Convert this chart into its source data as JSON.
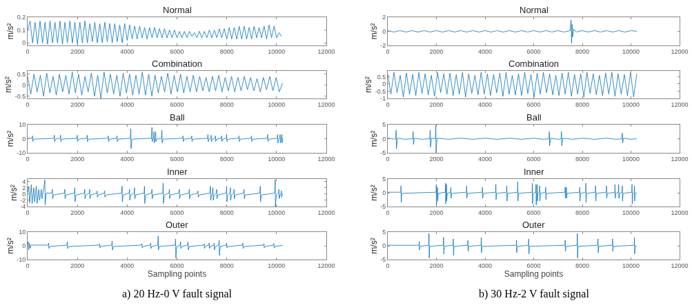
{
  "chart_data": [
    {
      "type": "line",
      "title": "Normal",
      "ylabel": "m/s²",
      "color": "#0072bd",
      "xlim": [
        0,
        12000
      ],
      "xticks": [
        0,
        2000,
        4000,
        6000,
        8000,
        10000,
        12000
      ],
      "ylim": [
        -0.02,
        0.2
      ],
      "yticks": [
        0,
        0.1,
        0.2
      ],
      "x": [
        0,
        100,
        200,
        300,
        400,
        500,
        600,
        700,
        800,
        900,
        1000,
        1100,
        1200,
        1300,
        1400,
        1500,
        1600,
        1700,
        1800,
        1900,
        2000,
        2100,
        2200,
        2300,
        2400,
        2500,
        2600,
        2700,
        2800,
        2900,
        3000,
        3100,
        3200,
        3300,
        3400,
        3500,
        3600,
        3700,
        3800,
        3900,
        4000,
        4100,
        4200,
        4300,
        4400,
        4500,
        4600,
        4700,
        4800,
        4900,
        5000,
        5100,
        5200,
        5300,
        5400,
        5500,
        5600,
        5700,
        5800,
        5900,
        6000,
        6100,
        6200,
        6300,
        6400,
        6500,
        6600,
        6700,
        6800,
        6900,
        7000,
        7100,
        7200,
        7300,
        7400,
        7500,
        7600,
        7700,
        7800,
        7900,
        8000,
        8100,
        8200,
        8300,
        8400,
        8500,
        8600,
        8700,
        8800,
        8900,
        9000,
        9100,
        9200,
        9300,
        9400,
        9500,
        9600,
        9700,
        9800,
        9900,
        10000,
        10100,
        10200
      ],
      "values": [
        0.1,
        0.17,
        0.0,
        0.16,
        -0.01,
        0.17,
        0.0,
        0.16,
        -0.01,
        0.17,
        0.0,
        0.16,
        0.0,
        0.17,
        -0.01,
        0.16,
        0.0,
        0.17,
        0.0,
        0.16,
        -0.01,
        0.16,
        0.0,
        0.17,
        0.0,
        0.15,
        0.01,
        0.16,
        0.0,
        0.15,
        0.0,
        0.16,
        0.01,
        0.15,
        0.0,
        0.15,
        0.01,
        0.14,
        0.0,
        0.15,
        0.02,
        0.14,
        0.03,
        0.13,
        0.03,
        0.13,
        0.04,
        0.12,
        0.03,
        0.12,
        0.04,
        0.12,
        0.04,
        0.11,
        0.04,
        0.11,
        0.04,
        0.1,
        0.04,
        0.1,
        0.04,
        0.09,
        0.04,
        0.09,
        0.04,
        0.09,
        0.05,
        0.08,
        0.04,
        0.09,
        0.04,
        0.09,
        0.04,
        0.1,
        0.04,
        0.1,
        0.04,
        0.11,
        0.04,
        0.11,
        0.03,
        0.12,
        0.03,
        0.12,
        0.03,
        0.13,
        0.03,
        0.13,
        0.03,
        0.12,
        0.03,
        0.13,
        0.04,
        0.12,
        0.04,
        0.13,
        0.03,
        0.14,
        0.04,
        0.13,
        0.04,
        0.08,
        0.05
      ]
    },
    {
      "type": "line",
      "title": "Combination",
      "ylabel": "m/s²",
      "color": "#0072bd",
      "xlim": [
        0,
        12000
      ],
      "xticks": [
        0,
        2000,
        4000,
        6000,
        8000,
        10000,
        12000
      ],
      "ylim": [
        -0.6,
        0.65
      ],
      "yticks": [
        -0.5,
        0,
        0.5
      ],
      "x": [
        0,
        128,
        256,
        384,
        512,
        640,
        768,
        896,
        1024,
        1152,
        1280,
        1408,
        1536,
        1664,
        1792,
        1920,
        2048,
        2176,
        2304,
        2432,
        2560,
        2688,
        2816,
        2944,
        3072,
        3200,
        3328,
        3456,
        3584,
        3712,
        3840,
        3968,
        4096,
        4224,
        4352,
        4480,
        4608,
        4736,
        4864,
        4992,
        5120,
        5248,
        5376,
        5504,
        5632,
        5760,
        5888,
        6016,
        6144,
        6272,
        6400,
        6528,
        6656,
        6784,
        6912,
        7040,
        7168,
        7296,
        7424,
        7552,
        7680,
        7808,
        7936,
        8064,
        8192,
        8320,
        8448,
        8576,
        8704,
        8832,
        8960,
        9088,
        9216,
        9344,
        9472,
        9600,
        9728,
        9856,
        9984,
        10112,
        10240
      ],
      "values": [
        0.4,
        -0.4,
        0.5,
        -0.3,
        0.45,
        -0.5,
        0.55,
        -0.35,
        0.4,
        -0.45,
        0.5,
        -0.3,
        0.45,
        -0.4,
        0.6,
        -0.35,
        0.5,
        -0.45,
        0.4,
        -0.3,
        0.55,
        -0.5,
        0.45,
        -0.6,
        0.6,
        -0.35,
        0.5,
        -0.4,
        0.45,
        -0.5,
        0.55,
        -0.35,
        0.5,
        -0.45,
        0.45,
        -0.4,
        0.6,
        -0.45,
        0.5,
        -0.5,
        0.45,
        -0.35,
        0.4,
        -0.3,
        0.55,
        -0.4,
        0.45,
        -0.3,
        0.5,
        -0.35,
        0.4,
        -0.3,
        0.45,
        -0.3,
        0.4,
        -0.25,
        0.35,
        -0.3,
        0.4,
        -0.25,
        0.45,
        -0.3,
        0.35,
        -0.25,
        0.4,
        -0.3,
        0.35,
        -0.25,
        0.4,
        -0.2,
        0.35,
        -0.25,
        0.3,
        -0.3,
        0.35,
        -0.2,
        0.4,
        -0.25,
        0.35,
        -0.3,
        0.1
      ]
    },
    {
      "type": "line",
      "title": "Ball",
      "ylabel": "m/s²",
      "color": "#0072bd",
      "xlim": [
        0,
        12000
      ],
      "xticks": [
        0,
        2000,
        4000,
        6000,
        8000,
        10000,
        12000
      ],
      "ylim": [
        -10,
        10
      ],
      "yticks": [
        -10,
        0,
        10
      ],
      "x": [
        0,
        180,
        195,
        205,
        240,
        1060,
        1075,
        1085,
        1120,
        1310,
        1325,
        1335,
        1370,
        1980,
        1995,
        2005,
        2040,
        2380,
        2395,
        2405,
        2440,
        3230,
        3245,
        3255,
        3290,
        3580,
        3595,
        3605,
        3640,
        4130,
        4145,
        4155,
        4190,
        4980,
        4995,
        5005,
        5040,
        5060,
        5075,
        5085,
        5120,
        5130,
        5145,
        5155,
        5190,
        5380,
        5395,
        5405,
        5440,
        6230,
        6245,
        6255,
        6290,
        6580,
        6595,
        6605,
        6640,
        7230,
        7245,
        7255,
        7290,
        7360,
        7375,
        7385,
        7420,
        7530,
        7545,
        7555,
        7590,
        7780,
        7795,
        7805,
        7840,
        7980,
        7995,
        8005,
        8040,
        8480,
        8495,
        8505,
        8540,
        8980,
        8995,
        9005,
        9040,
        9630,
        9645,
        9655,
        9690,
        10030,
        10045,
        10055,
        10090,
        10130,
        10145,
        10155,
        10190,
        10200,
        10215,
        10225,
        10240
      ],
      "values": [
        0.3,
        0.3,
        2,
        -2,
        -0.3,
        0.3,
        2.5,
        -2,
        -0.3,
        0.3,
        2.5,
        -2,
        -0.3,
        0.3,
        2.5,
        -2,
        -0.3,
        0.3,
        2.5,
        -2,
        -0.3,
        0.3,
        2,
        -2,
        -0.3,
        0.3,
        2,
        -2,
        -0.3,
        0.3,
        7,
        -7,
        -0.3,
        0.3,
        8,
        -2,
        -0.3,
        0.3,
        5,
        -3,
        -0.3,
        0.3,
        5,
        -2,
        -0.3,
        0.3,
        6,
        -3,
        -0.3,
        0.3,
        2,
        -2,
        -0.3,
        0.3,
        2,
        -2,
        -0.3,
        0.3,
        3,
        -2,
        -0.3,
        0.3,
        2.5,
        -2,
        -0.3,
        0.3,
        2,
        -2,
        -0.3,
        0.3,
        2,
        -2,
        -0.3,
        0.3,
        3,
        -2,
        -0.3,
        0.3,
        2,
        -2,
        -0.3,
        0.3,
        2,
        -2,
        -0.3,
        0.3,
        3,
        -2,
        -0.3,
        0.3,
        3,
        -3,
        -0.3,
        0.3,
        3,
        -3,
        -0.3,
        0.3,
        3,
        -3,
        0.2
      ]
    },
    {
      "type": "line",
      "title": "Inner",
      "ylabel": "m/s²",
      "color": "#0072bd",
      "xlim": [
        0,
        12000
      ],
      "xticks": [
        0,
        2000,
        4000,
        6000,
        8000,
        10000,
        12000
      ],
      "ylim": [
        -4,
        4.8
      ],
      "yticks": [
        -4,
        -2,
        0,
        2,
        4
      ],
      "x": [
        0,
        50,
        80,
        150,
        180,
        250,
        280,
        350,
        380,
        450,
        480,
        550,
        580,
        695,
        705,
        750,
        980,
        995,
        1005,
        1040,
        1480,
        1495,
        1505,
        1540,
        1880,
        1895,
        1905,
        1940,
        2280,
        2295,
        2305,
        2340,
        2480,
        2495,
        2505,
        2540,
        2780,
        2795,
        2805,
        2840,
        3080,
        3095,
        3105,
        3140,
        3780,
        3795,
        3805,
        3840,
        4080,
        4095,
        4105,
        4140,
        4280,
        4295,
        4305,
        4340,
        4680,
        4695,
        4705,
        4740,
        4980,
        4995,
        5005,
        5040,
        5430,
        5445,
        5455,
        5490,
        5680,
        5695,
        5705,
        5740,
        6080,
        6095,
        6105,
        6140,
        6480,
        6495,
        6505,
        6540,
        6830,
        6845,
        6855,
        6890,
        7330,
        7345,
        7355,
        7390,
        7430,
        7445,
        7455,
        7490,
        7580,
        7595,
        7605,
        7640,
        7980,
        7995,
        8005,
        8040,
        8130,
        8145,
        8155,
        8190,
        8280,
        8295,
        8305,
        8340,
        8680,
        8695,
        8705,
        8740,
        9330,
        9345,
        9355,
        9390,
        9930,
        9945,
        9955,
        9990,
        10080,
        10095,
        10105,
        10140,
        10180,
        10195,
        10205,
        10240
      ],
      "values": [
        0.5,
        2.5,
        -2.8,
        3,
        -3,
        2,
        -2.5,
        2.5,
        -3,
        1.5,
        -2,
        1.5,
        -1.5,
        4.5,
        -3.5,
        0.3,
        0.3,
        1.5,
        -1.5,
        -0.3,
        0.3,
        1.5,
        -1.5,
        -0.3,
        0.3,
        2,
        -2.5,
        -0.3,
        0.3,
        1.5,
        -1.5,
        -0.3,
        0.3,
        1.5,
        -1.5,
        -0.3,
        0.3,
        1,
        -1,
        -0.3,
        0.3,
        1,
        -1,
        -0.3,
        0.3,
        2.5,
        -2.5,
        -0.3,
        0.3,
        1.5,
        -2,
        -0.3,
        0.3,
        2,
        -1.5,
        -0.3,
        0.3,
        2.5,
        -3,
        -0.3,
        0.3,
        1.5,
        -1.5,
        -0.3,
        0.3,
        3.5,
        -3,
        -0.3,
        0.3,
        1.5,
        -1.5,
        -0.3,
        0.3,
        1.5,
        -1.5,
        -0.3,
        0.3,
        1.5,
        -1.5,
        -0.3,
        0.3,
        1,
        -1,
        -0.3,
        0.3,
        2.5,
        -2,
        -0.3,
        0.3,
        2,
        -2,
        -0.3,
        0.3,
        1.5,
        -1.5,
        -0.3,
        0.3,
        2.5,
        -2.5,
        -0.3,
        0.3,
        2,
        -2,
        -0.3,
        0.3,
        1.5,
        -1.5,
        -0.3,
        0.3,
        1.5,
        -1.5,
        -0.3,
        0.3,
        2.5,
        -2.5,
        -0.3,
        0.3,
        4.5,
        -4,
        -0.3,
        0.3,
        1.5,
        -1.5,
        -0.3,
        0.3,
        1,
        -1,
        0.1
      ]
    },
    {
      "type": "line",
      "title": "Outer",
      "ylabel": "m/s²",
      "xlabel": "Sampling points",
      "annotations": [
        "a) 20 Hz-0 V fault signal"
      ],
      "color": "#0072bd",
      "xlim": [
        0,
        12000
      ],
      "xticks": [
        0,
        2000,
        4000,
        6000,
        8000,
        10000,
        12000
      ],
      "ylim": [
        -10,
        10
      ],
      "yticks": [
        -10,
        0,
        10
      ],
      "x": [
        0,
        20,
        40,
        70,
        100,
        130,
        830,
        845,
        855,
        890,
        1580,
        1595,
        1605,
        1640,
        2880,
        2895,
        2905,
        2940,
        3380,
        3395,
        3405,
        3440,
        4580,
        4595,
        4605,
        4640,
        4930,
        4945,
        4955,
        4990,
        5230,
        5245,
        5255,
        5290,
        5930,
        5945,
        5955,
        5990,
        6130,
        6145,
        6155,
        6190,
        6430,
        6445,
        6455,
        6490,
        7080,
        7095,
        7105,
        7140,
        7280,
        7295,
        7305,
        7340,
        7480,
        7495,
        7505,
        7540,
        7680,
        7695,
        7705,
        7740,
        7980,
        7995,
        8005,
        8040,
        8630,
        8645,
        8655,
        8690,
        9480,
        9495,
        9505,
        9540,
        9880,
        9895,
        9905,
        9940,
        10240
      ],
      "values": [
        1,
        3,
        -3,
        2,
        -2,
        0.5,
        0.5,
        2,
        -2,
        -0.5,
        0.5,
        3,
        -2,
        -0.5,
        0.5,
        1.5,
        -1.5,
        -0.5,
        0.5,
        3.5,
        -3,
        -0.5,
        0.5,
        1.5,
        -1.5,
        -0.5,
        0.5,
        2,
        -2,
        -0.5,
        0.5,
        7,
        -3,
        -0.5,
        0.5,
        5,
        -9,
        -0.5,
        0.5,
        3,
        -2,
        -0.5,
        0.5,
        3,
        -3,
        -0.5,
        0.5,
        1.5,
        -2,
        -0.5,
        0.5,
        2,
        -2,
        -0.5,
        0.5,
        2,
        -3,
        -0.5,
        0.5,
        4,
        -7,
        -0.5,
        0.5,
        2,
        -1.5,
        -0.5,
        0.5,
        2,
        -2,
        -0.5,
        0.5,
        1.5,
        -1.5,
        -0.5,
        0.5,
        1.5,
        -1.5,
        -0.5,
        0.3
      ]
    },
    {
      "type": "line",
      "title": "Normal",
      "ylabel": "m/s²",
      "color": "#0072bd",
      "xlim": [
        0,
        12000
      ],
      "xticks": [
        0,
        2000,
        4000,
        6000,
        8000,
        10000,
        12000
      ],
      "ylim": [
        -2,
        2
      ],
      "yticks": [
        -2,
        0,
        2
      ],
      "x": [
        0,
        250,
        500,
        750,
        1000,
        1250,
        1500,
        1750,
        2000,
        2250,
        2500,
        2750,
        3000,
        3250,
        3500,
        3750,
        4000,
        4250,
        4500,
        4750,
        5000,
        5250,
        5500,
        5750,
        6000,
        6250,
        6500,
        6750,
        7000,
        7250,
        7500,
        7540,
        7560,
        7580,
        7600,
        7650,
        7750,
        8000,
        8250,
        8500,
        8750,
        9000,
        9250,
        9500,
        9750,
        10000,
        10240
      ],
      "values": [
        0.1,
        -0.1,
        0.1,
        -0.1,
        0.1,
        -0.1,
        0.1,
        -0.1,
        0.1,
        -0.1,
        0.1,
        -0.1,
        0.1,
        -0.1,
        0.1,
        -0.1,
        0.1,
        -0.1,
        0.1,
        -0.1,
        0.1,
        -0.1,
        0.1,
        -0.1,
        0.1,
        -0.1,
        0.1,
        -0.1,
        0.1,
        -0.1,
        0.1,
        1.6,
        -1.7,
        1.0,
        -0.8,
        0.3,
        -0.1,
        0.1,
        -0.1,
        0.1,
        -0.1,
        0.1,
        -0.1,
        0.1,
        -0.1,
        0.1,
        0.0
      ]
    },
    {
      "type": "line",
      "title": "Combination",
      "ylabel": "m/s²",
      "color": "#0072bd",
      "xlim": [
        0,
        12000
      ],
      "xticks": [
        0,
        2000,
        4000,
        6000,
        8000,
        10000,
        12000
      ],
      "ylim": [
        -1,
        0.9
      ],
      "yticks": [
        -1,
        -0.5,
        0,
        0.5
      ],
      "x": [
        0,
        128,
        256,
        384,
        512,
        640,
        768,
        896,
        1024,
        1152,
        1280,
        1408,
        1536,
        1664,
        1792,
        1920,
        2048,
        2176,
        2304,
        2432,
        2560,
        2688,
        2816,
        2944,
        3072,
        3200,
        3328,
        3456,
        3584,
        3712,
        3840,
        3968,
        4096,
        4224,
        4352,
        4480,
        4608,
        4736,
        4864,
        4992,
        5120,
        5248,
        5376,
        5504,
        5632,
        5760,
        5888,
        6016,
        6144,
        6272,
        6400,
        6528,
        6656,
        6784,
        6912,
        7040,
        7168,
        7296,
        7424,
        7552,
        7680,
        7808,
        7936,
        8064,
        8192,
        8320,
        8448,
        8576,
        8704,
        8832,
        8960,
        9088,
        9216,
        9344,
        9472,
        9600,
        9728,
        9856,
        9984,
        10112,
        10240
      ],
      "values": [
        0.7,
        -0.7,
        0.8,
        -0.6,
        0.6,
        -0.9,
        0.75,
        -0.7,
        0.65,
        -0.8,
        0.8,
        -0.65,
        0.7,
        -0.75,
        0.6,
        -0.85,
        0.8,
        -0.6,
        0.7,
        -0.7,
        0.75,
        -0.8,
        0.65,
        -0.7,
        0.8,
        -0.9,
        0.7,
        -0.65,
        0.6,
        -0.75,
        0.8,
        -0.7,
        0.7,
        -0.8,
        0.65,
        -0.6,
        0.75,
        -0.85,
        0.8,
        -0.7,
        0.6,
        -0.75,
        0.7,
        -0.8,
        0.8,
        -0.65,
        0.65,
        -0.9,
        0.75,
        -0.7,
        0.8,
        -0.6,
        0.7,
        -0.75,
        0.6,
        -0.8,
        0.75,
        -0.7,
        0.8,
        -0.85,
        0.65,
        -0.7,
        0.7,
        -0.9,
        0.8,
        -0.65,
        0.7,
        -0.75,
        0.6,
        -0.8,
        0.75,
        -0.7,
        0.8,
        -0.85,
        0.7,
        -0.7,
        0.65,
        -0.8,
        0.8,
        -0.9,
        0.7
      ]
    },
    {
      "type": "line",
      "title": "Ball",
      "ylabel": "m/s²",
      "color": "#0072bd",
      "xlim": [
        0,
        12000
      ],
      "xticks": [
        0,
        2000,
        4000,
        6000,
        8000,
        10000,
        12000
      ],
      "ylim": [
        -5,
        5
      ],
      "yticks": [
        -5,
        0,
        5
      ],
      "x": [
        0,
        300,
        330,
        345,
        355,
        400,
        700,
        1030,
        1045,
        1055,
        1100,
        1400,
        1730,
        1745,
        1755,
        1800,
        1960,
        1975,
        1985,
        2030,
        2500,
        3000,
        3500,
        4000,
        4500,
        5000,
        5500,
        6000,
        6400,
        6630,
        6645,
        6655,
        6700,
        7000,
        7130,
        7145,
        7155,
        7200,
        7600,
        8000,
        8500,
        9000,
        9400,
        9630,
        9645,
        9655,
        9700,
        10000,
        10240
      ],
      "values": [
        0.2,
        -0.2,
        0,
        3,
        -3.5,
        0.2,
        -0.2,
        0,
        2.5,
        -2,
        0.2,
        -0.2,
        0,
        3,
        -3,
        0.2,
        0,
        4.7,
        -4.9,
        0.2,
        -0.2,
        0.2,
        -0.2,
        0.2,
        -0.2,
        0.2,
        -0.2,
        0.2,
        -0.2,
        0,
        2.5,
        -2.5,
        0.2,
        -0.2,
        0,
        2.5,
        -2.5,
        0.2,
        -0.2,
        0.2,
        -0.2,
        0.2,
        -0.2,
        0,
        2,
        -1.5,
        0.2,
        -0.2,
        0.0
      ]
    },
    {
      "type": "line",
      "title": "Inner",
      "ylabel": "m/s²",
      "color": "#0072bd",
      "xlim": [
        0,
        12000
      ],
      "xticks": [
        0,
        2000,
        4000,
        6000,
        8000,
        10000,
        12000
      ],
      "ylim": [
        -5,
        5
      ],
      "yticks": [
        -5,
        0,
        5
      ],
      "x": [
        0,
        538,
        545,
        555,
        575,
        1988,
        1995,
        2005,
        2025,
        2038,
        2045,
        2055,
        2075,
        2368,
        2375,
        2385,
        2405,
        2408,
        2415,
        2425,
        2445,
        2588,
        2595,
        2605,
        2625,
        3238,
        3245,
        3255,
        3275,
        3888,
        3895,
        3905,
        3925,
        4438,
        4445,
        4455,
        4475,
        4888,
        4895,
        4905,
        4925,
        5338,
        5345,
        5355,
        5375,
        5938,
        5945,
        5955,
        5975,
        6088,
        6095,
        6105,
        6125,
        6138,
        6145,
        6155,
        6175,
        6238,
        6245,
        6255,
        6275,
        6488,
        6495,
        6505,
        6525,
        7288,
        7295,
        7305,
        7325,
        7338,
        7345,
        7355,
        7375,
        7888,
        7895,
        7905,
        7925,
        8138,
        8145,
        8155,
        8175,
        8538,
        8545,
        8555,
        8575,
        8988,
        8995,
        9005,
        9025,
        9338,
        9345,
        9355,
        9375,
        9488,
        9495,
        9505,
        9525,
        9638,
        9645,
        9655,
        9675,
        10038,
        10045,
        10055,
        10075,
        10138,
        10145,
        10155,
        10175,
        10240
      ],
      "values": [
        0.2,
        0.2,
        2.5,
        -3.5,
        -0.2,
        0.2,
        3,
        -4.5,
        -0.2,
        0.2,
        2,
        -3,
        -0.2,
        0.2,
        3.5,
        -4,
        -0.2,
        0.2,
        3,
        -3,
        -0.2,
        0.2,
        2,
        -2,
        -0.2,
        0.2,
        2.5,
        -2,
        -0.2,
        0.2,
        2,
        -2,
        -0.2,
        0.2,
        3,
        -2.5,
        -0.2,
        0.2,
        2.5,
        -3,
        -0.2,
        0.2,
        4,
        -3,
        -0.2,
        0.2,
        3.5,
        -4,
        -0.2,
        0.2,
        3,
        -4.5,
        -0.2,
        0.2,
        3,
        -3,
        -0.2,
        0.2,
        2.5,
        -3,
        -0.2,
        0.2,
        2,
        -2.5,
        -0.2,
        0.2,
        2,
        -2,
        -0.2,
        0.2,
        2,
        -2,
        -0.2,
        0.2,
        2,
        -3,
        -0.2,
        0.2,
        3.5,
        -3.5,
        -0.2,
        0.2,
        2.5,
        -3,
        -0.2,
        0.2,
        2.5,
        -2,
        -0.2,
        0.2,
        3,
        -2,
        -0.2,
        0.2,
        3,
        -2,
        -0.2,
        0.2,
        2.5,
        -3,
        -0.2,
        0.2,
        3,
        -4,
        -0.2,
        0.2,
        2.5,
        -3,
        -0.2,
        0.0
      ]
    },
    {
      "type": "line",
      "title": "Outer",
      "ylabel": "m/s²",
      "xlabel": "Sampling points",
      "annotations": [
        "b) 30 Hz-2 V fault signal"
      ],
      "color": "#0072bd",
      "xlim": [
        0,
        12000
      ],
      "xticks": [
        0,
        2000,
        4000,
        6000,
        8000,
        10000,
        12000
      ],
      "ylim": [
        -5,
        5
      ],
      "yticks": [
        -5,
        0,
        5
      ],
      "x": [
        0,
        1288,
        1295,
        1305,
        1325,
        1688,
        1695,
        1705,
        1725,
        2288,
        2295,
        2305,
        2325,
        2688,
        2695,
        2705,
        2725,
        3288,
        3295,
        3305,
        3325,
        3838,
        3845,
        3855,
        3875,
        5288,
        5295,
        5305,
        5325,
        5788,
        5795,
        5805,
        5825,
        7288,
        7295,
        7305,
        7325,
        7788,
        7795,
        7805,
        7825,
        8638,
        8645,
        8655,
        8675,
        9238,
        9245,
        9255,
        9275,
        10138,
        10145,
        10155,
        10175,
        10240
      ],
      "values": [
        0.2,
        0.2,
        1.5,
        -1.5,
        -0.2,
        0.2,
        4.5,
        -4.5,
        -0.2,
        0.2,
        3,
        -3,
        -0.2,
        0.2,
        2.5,
        -3.5,
        -0.2,
        0.2,
        2,
        -2,
        -0.2,
        0.2,
        3,
        -2.5,
        -0.2,
        0.2,
        2,
        -2.5,
        -0.2,
        0.2,
        2.5,
        -3,
        -0.2,
        0.2,
        2,
        -2,
        -0.2,
        0.2,
        4.5,
        -4.5,
        -0.2,
        0.2,
        2.5,
        -2.5,
        -0.2,
        0.2,
        2.5,
        -2,
        -0.2,
        0.2,
        3,
        -3,
        -0.2,
        0.0
      ]
    }
  ]
}
